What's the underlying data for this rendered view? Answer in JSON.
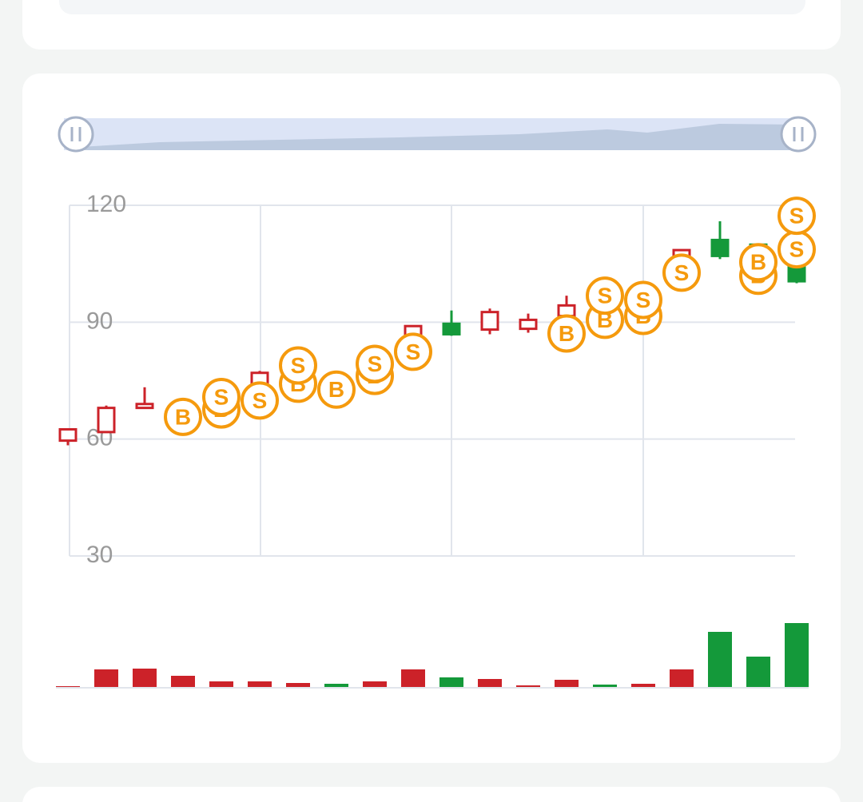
{
  "chart_data": {
    "type": "candlestick",
    "ylim": [
      30,
      120
    ],
    "yticks": [
      30,
      60,
      90,
      120
    ],
    "grid": true,
    "up_color": "#cc2229",
    "down_color": "#14993a",
    "marker_color": "#f59a0d",
    "candles": [
      {
        "open": 59.6,
        "high": 62.5,
        "low": 58.4,
        "close": 62.5
      },
      {
        "open": 61.8,
        "high": 68.6,
        "low": 61.8,
        "close": 68.0
      },
      {
        "open": 68.0,
        "high": 73.3,
        "low": 68.0,
        "close": 69.0
      },
      {
        "open": 66.0,
        "high": 68.5,
        "low": 65.5,
        "close": 68.0
      },
      {
        "open": 68.0,
        "high": 72.5,
        "low": 67.5,
        "close": 72.0
      },
      {
        "open": 72.0,
        "high": 77.5,
        "low": 71.5,
        "close": 77.0
      },
      {
        "open": 76.0,
        "high": 79.5,
        "low": 75.5,
        "close": 79.0
      },
      {
        "open": 76.0,
        "high": 76.5,
        "low": 73.5,
        "close": 74.0
      },
      {
        "open": 78.0,
        "high": 81.5,
        "low": 77.5,
        "close": 81.0
      },
      {
        "open": 84.0,
        "high": 89.2,
        "low": 83.5,
        "close": 89.0
      },
      {
        "open": 89.6,
        "high": 93.0,
        "low": 86.5,
        "close": 86.9
      },
      {
        "open": 88.1,
        "high": 93.5,
        "low": 86.9,
        "close": 92.6
      },
      {
        "open": 88.3,
        "high": 92.2,
        "low": 87.3,
        "close": 90.6
      },
      {
        "open": 91.6,
        "high": 96.8,
        "low": 90.0,
        "close": 94.3
      },
      {
        "open": 96.0,
        "high": 96.5,
        "low": 91.5,
        "close": 92.0
      },
      {
        "open": 93.0,
        "high": 97.5,
        "low": 92.5,
        "close": 97.0
      },
      {
        "open": 104.0,
        "high": 108.6,
        "low": 103.0,
        "close": 108.5
      },
      {
        "open": 111.1,
        "high": 115.9,
        "low": 106.2,
        "close": 107.0
      },
      {
        "open": 109.9,
        "high": 110.0,
        "low": 102.0,
        "close": 103.0
      },
      {
        "open": 106.0,
        "high": 108.0,
        "low": 100.0,
        "close": 100.5
      }
    ],
    "volume": [
      1,
      22,
      23,
      14,
      7,
      7,
      5,
      4,
      7,
      22,
      12,
      10,
      2,
      9,
      3,
      4,
      22,
      69,
      38,
      80
    ],
    "markers": [
      {
        "index": 3,
        "label": "B",
        "value": 65.7
      },
      {
        "index": 4,
        "label": "B",
        "value": 67.6
      },
      {
        "index": 4,
        "label": "S",
        "value": 70.8
      },
      {
        "index": 5,
        "label": "S",
        "value": 69.9
      },
      {
        "index": 6,
        "label": "B",
        "value": 74.2
      },
      {
        "index": 6,
        "label": "S",
        "value": 78.9
      },
      {
        "index": 7,
        "label": "B",
        "value": 72.7
      },
      {
        "index": 8,
        "label": "B",
        "value": 76.2
      },
      {
        "index": 8,
        "label": "S",
        "value": 79.3
      },
      {
        "index": 9,
        "label": "S",
        "value": 82.4
      },
      {
        "index": 13,
        "label": "B",
        "value": 87.1
      },
      {
        "index": 14,
        "label": "B",
        "value": 90.6
      },
      {
        "index": 14,
        "label": "S",
        "value": 96.8
      },
      {
        "index": 15,
        "label": "B",
        "value": 91.6
      },
      {
        "index": 15,
        "label": "S",
        "value": 95.7
      },
      {
        "index": 16,
        "label": "S",
        "value": 102.7
      },
      {
        "index": 18,
        "label": "B",
        "value": 101.9
      },
      {
        "index": 18,
        "label": "B",
        "value": 105.4
      },
      {
        "index": 19,
        "label": "S",
        "value": 108.7
      },
      {
        "index": 19,
        "label": "S",
        "value": 117.3
      }
    ]
  }
}
